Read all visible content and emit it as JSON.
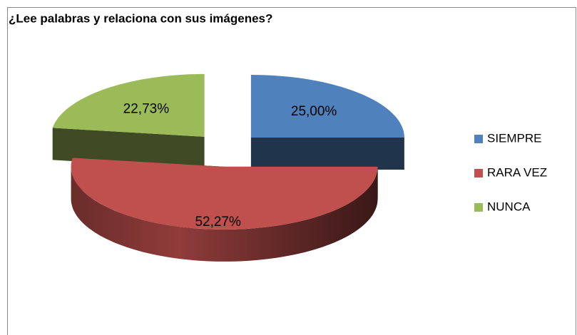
{
  "chart_data": {
    "type": "pie",
    "three_d": true,
    "title": "¿Lee palabras y relaciona con sus imágenes?",
    "categories": [
      "SIEMPRE",
      "RARA VEZ",
      "NUNCA"
    ],
    "values": [
      25,
      52.27,
      22.73
    ],
    "value_labels": [
      "25,00%",
      "52,27%",
      "22,73%"
    ],
    "colors": [
      "#4f81bd",
      "#c0504d",
      "#9bbb59"
    ],
    "legend": "right"
  }
}
